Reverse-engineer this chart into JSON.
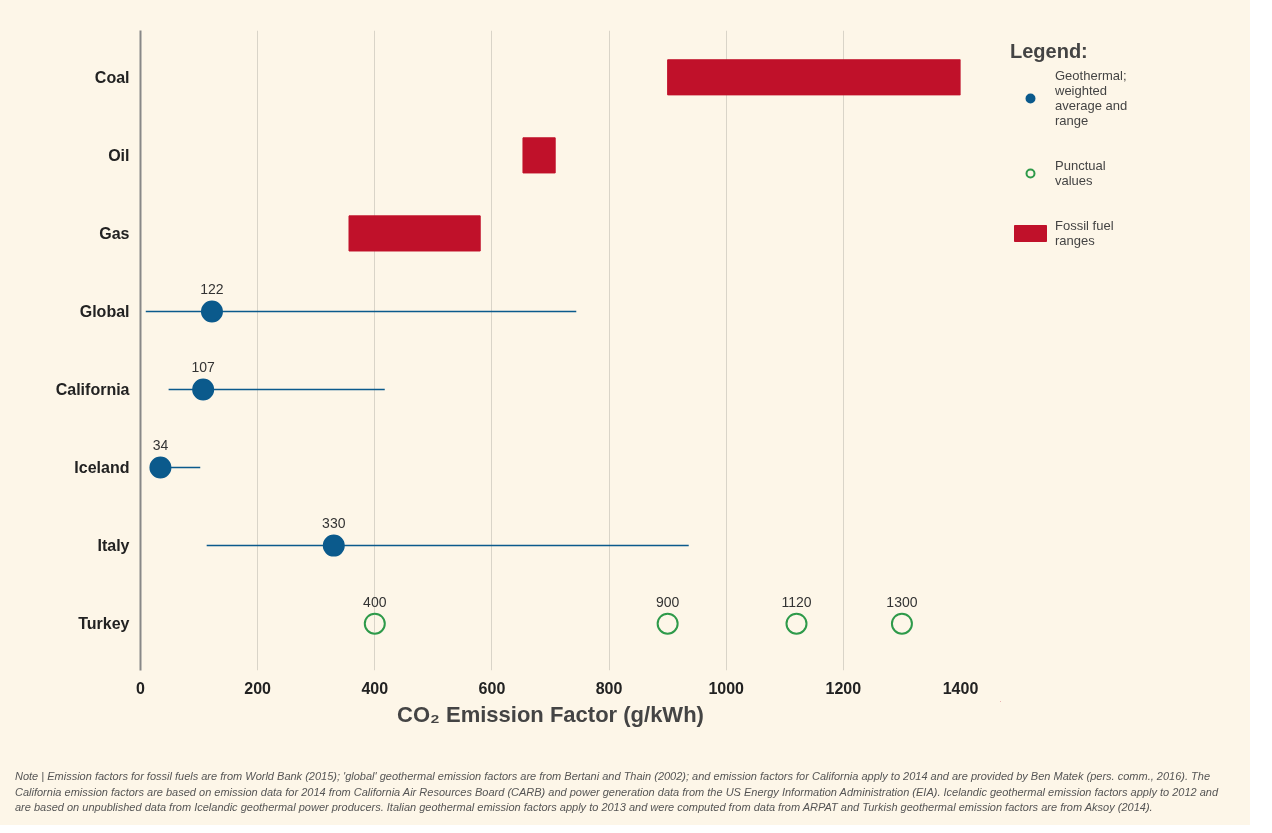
{
  "chart_data": {
    "type": "bar",
    "orientation": "horizontal",
    "categories": [
      "Coal",
      "Oil",
      "Gas",
      "Global",
      "California",
      "Iceland",
      "Italy",
      "Turkey"
    ],
    "xlabel": "CO₂ Emission Factor (g/kWh)",
    "xlim": [
      0,
      1400
    ],
    "xticks": [
      0,
      200,
      400,
      600,
      800,
      1000,
      1200,
      1400
    ],
    "grid": "x",
    "legend": "right",
    "legend_title": "Legend:",
    "series": [
      {
        "name": "Geothermal; weighted average and range",
        "type": "scatter",
        "marker": "circle",
        "color": "#0b5a8c",
        "values": [
          null,
          null,
          null,
          122,
          107,
          34,
          330,
          null
        ],
        "errors": [
          null,
          null,
          null,
          [
            9,
            744
          ],
          [
            48,
            417
          ],
          [
            34,
            102
          ],
          [
            113,
            936
          ],
          null
        ],
        "value_labels": [
          null,
          null,
          null,
          "122",
          "107",
          "34",
          "330",
          null
        ]
      },
      {
        "name": "Punctual values",
        "type": "scatter",
        "marker": "circle",
        "color": "#2e9a4a",
        "x": [
          "Turkey",
          "Turkey",
          "Turkey",
          "Turkey"
        ],
        "values": [
          400,
          900,
          1120,
          1300
        ],
        "value_labels": [
          "400",
          "900",
          "1120",
          "1300"
        ]
      },
      {
        "name": "Fossil fuel ranges",
        "color": "#c0112a",
        "base": [
          900,
          653,
          356,
          null,
          null,
          null,
          null,
          null
        ],
        "values": [
          500,
          55,
          224,
          null,
          null,
          null,
          null,
          null
        ]
      }
    ],
    "annotations": [
      "Note | Emission factors for fossil fuels are from World Bank (2015); 'global' geothermal emission factors are from Bertani and Thain (2002); and emission factors for California apply to 2014 and are provided by Ben Matek (pers. comm., 2016). The California emission factors are based on emission data for 2014 from California Air Resources Board (CARB) and power generation data from the US Energy Information Administration (EIA). Icelandic geothermal emission factors apply to 2012 and are based on unpublished data from Icelandic geothermal power producers. Italian geothermal emission factors apply to 2013 and were computed from data from ARPAT and Turkish geothermal emission factors are from Aksoy (2014)."
    ]
  }
}
